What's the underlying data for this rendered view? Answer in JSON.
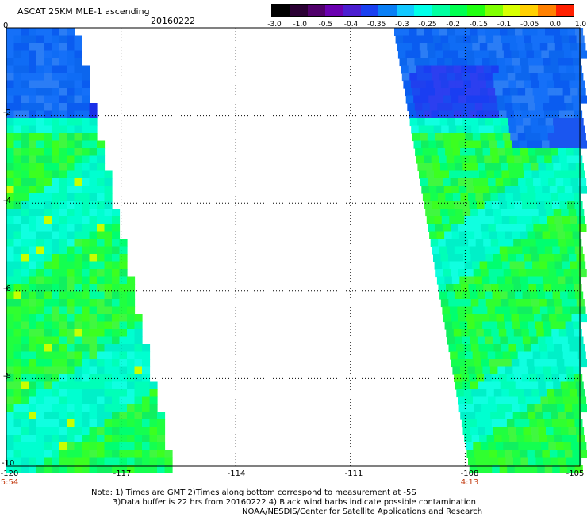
{
  "header": {
    "title": "ASCAT 25KM MLE-1 ascending",
    "date": "20160222"
  },
  "colorbar": {
    "colors": [
      "#000000",
      "#2a0033",
      "#50006a",
      "#6a00b0",
      "#4b1ed0",
      "#1a40f0",
      "#0a7ff5",
      "#12c8ff",
      "#00ffe8",
      "#00ffa0",
      "#00ff50",
      "#20ff10",
      "#80ff00",
      "#d8ff00",
      "#ffd000",
      "#ff8000",
      "#ff2000"
    ],
    "labels": [
      "-3.0",
      "-1.0",
      "-0.5",
      "-0.4",
      "-0.35",
      "-0.3",
      "-0.25",
      "-0.2",
      "-0.15",
      "-0.1",
      "-0.05",
      "0.0",
      "1.0"
    ]
  },
  "axes": {
    "x_ticks": [
      "-120",
      "-117",
      "-114",
      "-111",
      "-108",
      "-105"
    ],
    "y_ticks": [
      "0",
      "-2",
      "-4",
      "-6",
      "-8",
      "-10"
    ],
    "time_labels": [
      {
        "label": "5:54",
        "lon": -120
      },
      {
        "label": "4:13",
        "lon": -108
      }
    ]
  },
  "notes": [
    "Note: 1) Times are GMT 2)Times along bottom correspond to measurement at -5S",
    "3)Data buffer is 22 hrs from 20160222 4) Black wind barbs indicate possible contamination",
    "NOAA/NESDIS/Center for Satellite Applications and Research"
  ]
}
